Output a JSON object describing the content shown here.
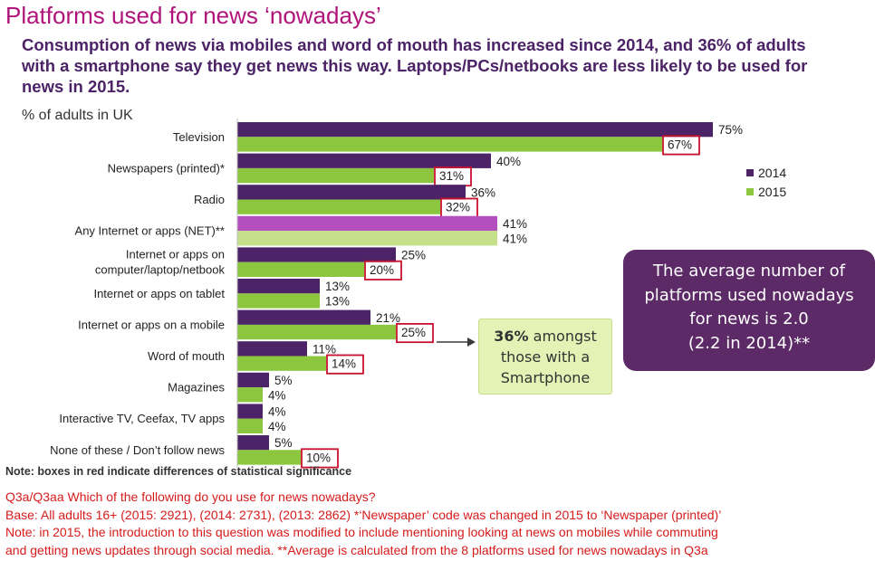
{
  "title": "Platforms used for news ‘nowadays’",
  "subtitle": "Consumption of news via mobiles and word of mouth has increased since 2014, and 36% of adults with a smartphone say they get news this way. Laptops/PCs/netbooks are less likely to be used for news in 2015.",
  "y_axis_label": "% of adults in UK",
  "legend": [
    {
      "label": "2014",
      "color": "#4b2366"
    },
    {
      "label": "2015",
      "color": "#8cc63f"
    }
  ],
  "callout": {
    "bold": "36%",
    "lines": [
      " amongst",
      "those with a",
      "Smartphone"
    ]
  },
  "info_box": {
    "lines": [
      "The average number of",
      "platforms used nowadays",
      "for news is 2.0",
      "(2.2 in 2014)**"
    ]
  },
  "note": "Note: boxes in red indicate differences of statistical significance",
  "footer": [
    "Q3a/Q3aa Which of the following do you use for news nowadays?",
    "Base: All adults 16+ (2015: 2921), (2014: 2731), (2013: 2862) *‘Newspaper’ code was changed in 2015 to ‘Newspaper (printed)’",
    "Note: in 2015, the introduction to this question was modified to include mentioning looking at news on mobiles while commuting",
    "and getting news updates through social media. **Average is calculated from the 8 platforms used for news nowadays in Q3a"
  ],
  "chart_data": {
    "type": "bar",
    "orientation": "horizontal",
    "title": "Platforms used for news ‘nowadays’",
    "xlabel": "",
    "ylabel": "% of adults in UK",
    "xlim": [
      0,
      100
    ],
    "categories": [
      [
        "Television"
      ],
      [
        "Newspapers (printed)*"
      ],
      [
        "Radio"
      ],
      [
        "Any Internet or apps (NET)**"
      ],
      [
        "Internet or apps on",
        "computer/laptop/netbook"
      ],
      [
        "Internet or apps on tablet"
      ],
      [
        "Internet or apps on a mobile"
      ],
      [
        "Word of mouth"
      ],
      [
        "Magazines"
      ],
      [
        "Interactive TV, Ceefax, TV apps"
      ],
      [
        "None of these / Don’t follow news"
      ]
    ],
    "series": [
      {
        "name": "2014",
        "values": [
          75,
          40,
          36,
          41,
          25,
          13,
          21,
          11,
          5,
          4,
          5
        ],
        "color": "#4b2366",
        "highlight_color": "#b44fc0"
      },
      {
        "name": "2015",
        "values": [
          67,
          31,
          32,
          41,
          20,
          13,
          25,
          14,
          4,
          4,
          10
        ],
        "color": "#8cc63f",
        "highlight_color": "#c5e08a"
      }
    ],
    "highlighted_category_index": 3,
    "significant_2015": [
      true,
      true,
      true,
      false,
      true,
      false,
      true,
      true,
      false,
      false,
      true
    ],
    "significance_box_color": "#c8102e",
    "grid": false
  }
}
